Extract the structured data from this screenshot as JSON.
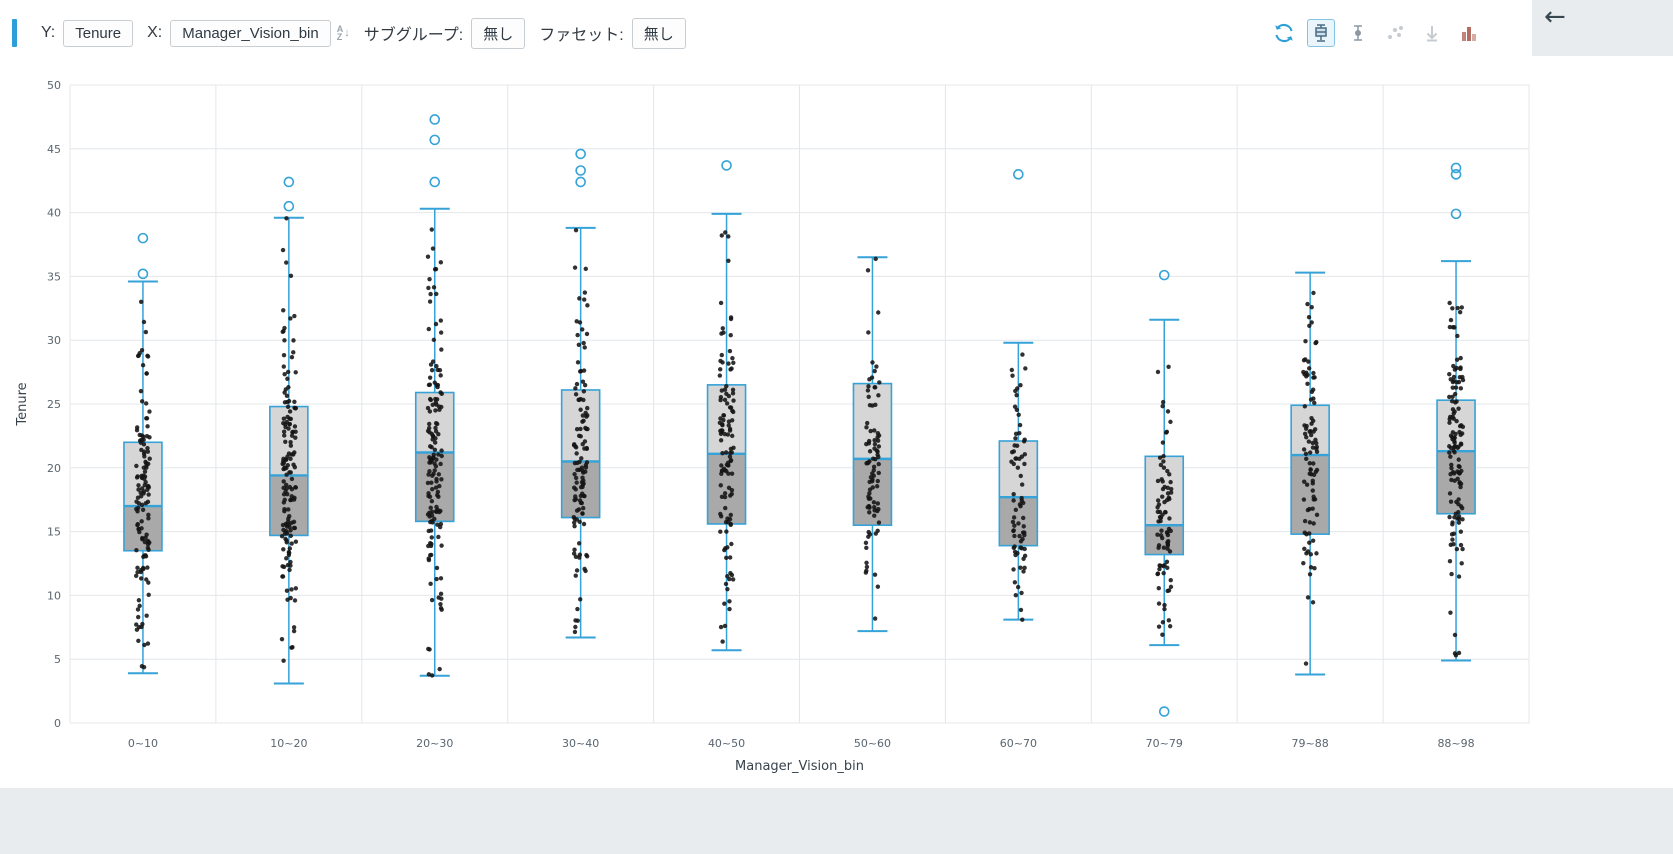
{
  "header": {
    "y_label": "Y:",
    "y_value": "Tenure",
    "x_label": "X:",
    "x_value": "Manager_Vision_bin",
    "sort_a": "A",
    "sort_z": "Z",
    "sort_arrow": "↓",
    "subgroup_label": "サブグループ:",
    "subgroup_value": "無し",
    "facet_label": "ファセット:",
    "facet_value": "無し",
    "back_arrow": "←",
    "icons": [
      "sync-icon",
      "boxplot-chart-icon",
      "pointrange-chart-icon",
      "scatter-chart-icon",
      "dropline-chart-icon",
      "histogram-chart-icon"
    ],
    "selected_chart_type": "boxplot"
  },
  "colors": {
    "accent_blue": "#35a2d8",
    "box_fill_upper": "#d6d6d6",
    "box_fill_lower": "#a9a9a9",
    "point": "#141414",
    "grid": "#e3e7ea",
    "axis_text": "#5a6570"
  },
  "chart_data": {
    "type": "box",
    "title": "",
    "xlabel": "Manager_Vision_bin",
    "ylabel": "Tenure",
    "ylim": [
      0,
      50
    ],
    "ytick_step": 5,
    "grid": true,
    "legend": "none",
    "show_points": true,
    "categories": [
      "0~10",
      "10~20",
      "20~30",
      "30~40",
      "40~50",
      "50~60",
      "60~70",
      "70~79",
      "79~88",
      "88~98"
    ],
    "boxes": [
      {
        "category": "0~10",
        "whisker_low": 3.9,
        "q1": 13.5,
        "median": 17.0,
        "q3": 22.0,
        "whisker_high": 34.6,
        "outliers": [
          38.0,
          35.2
        ],
        "points": 130
      },
      {
        "category": "10~20",
        "whisker_low": 3.1,
        "q1": 14.7,
        "median": 19.4,
        "q3": 24.8,
        "whisker_high": 39.6,
        "outliers": [
          42.4,
          40.5
        ],
        "points": 150
      },
      {
        "category": "20~30",
        "whisker_low": 3.7,
        "q1": 15.8,
        "median": 21.2,
        "q3": 25.9,
        "whisker_high": 40.3,
        "outliers": [
          47.3,
          45.7,
          42.4
        ],
        "points": 150
      },
      {
        "category": "30~40",
        "whisker_low": 6.7,
        "q1": 16.1,
        "median": 20.5,
        "q3": 26.1,
        "whisker_high": 38.8,
        "outliers": [
          44.6,
          43.3,
          42.4
        ],
        "points": 120
      },
      {
        "category": "40~50",
        "whisker_low": 5.7,
        "q1": 15.6,
        "median": 21.1,
        "q3": 26.5,
        "whisker_high": 39.9,
        "outliers": [
          43.7
        ],
        "points": 120
      },
      {
        "category": "50~60",
        "whisker_low": 7.2,
        "q1": 15.5,
        "median": 20.7,
        "q3": 26.6,
        "whisker_high": 36.5,
        "outliers": [],
        "points": 90
      },
      {
        "category": "60~70",
        "whisker_low": 8.1,
        "q1": 13.9,
        "median": 17.7,
        "q3": 22.1,
        "whisker_high": 29.8,
        "outliers": [
          43.0
        ],
        "points": 75
      },
      {
        "category": "70~79",
        "whisker_low": 6.1,
        "q1": 13.2,
        "median": 15.5,
        "q3": 20.9,
        "whisker_high": 31.6,
        "outliers": [
          35.1,
          0.9
        ],
        "points": 85
      },
      {
        "category": "79~88",
        "whisker_low": 3.8,
        "q1": 14.8,
        "median": 21.0,
        "q3": 24.9,
        "whisker_high": 35.3,
        "outliers": [],
        "points": 95
      },
      {
        "category": "88~98",
        "whisker_low": 4.9,
        "q1": 16.4,
        "median": 21.3,
        "q3": 25.3,
        "whisker_high": 36.2,
        "outliers": [
          43.5,
          43.0,
          39.9
        ],
        "points": 130
      }
    ]
  }
}
